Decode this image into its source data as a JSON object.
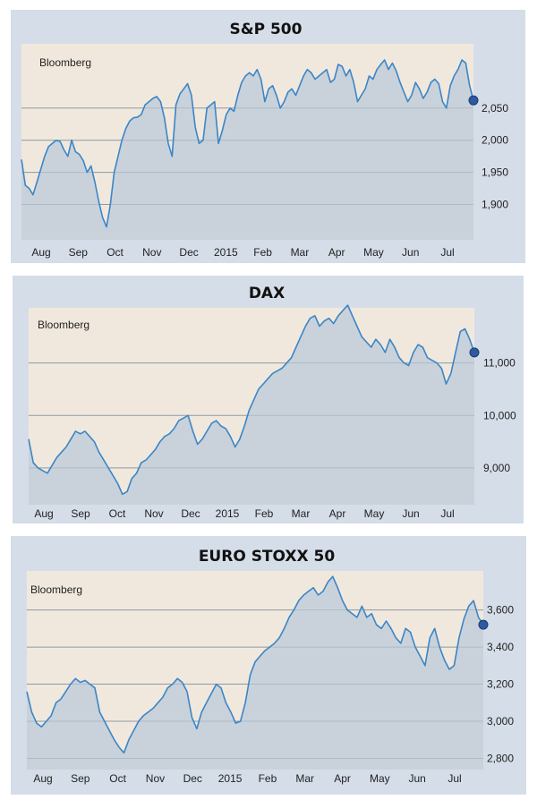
{
  "colors": {
    "frame": "#d5dde8",
    "plot_background": "#f1e8dd",
    "area_fill": "#b8c9d8",
    "line": "#3a86c8",
    "gridline": "#8e99a3",
    "endpoint_fill": "#2d5aa0",
    "endpoint_stroke": "#1b3a6e"
  },
  "chart_data": [
    {
      "type": "area",
      "title": "S&P 500",
      "source": "Bloomberg",
      "x_labels": [
        "Aug",
        "Sep",
        "Oct",
        "Nov",
        "Dec",
        "2015",
        "Feb",
        "Mar",
        "Apr",
        "May",
        "Jun",
        "Jul"
      ],
      "y_ticks": [
        1900,
        1950,
        2000,
        2050
      ],
      "y_tick_labels": [
        "1,900",
        "1,950",
        "2,000",
        "2,050"
      ],
      "ylim": [
        1845,
        2150
      ],
      "grid": true,
      "series": [
        {
          "values": [
            1970,
            1930,
            1925,
            1915,
            1935,
            1955,
            1975,
            1990,
            1995,
            2000,
            1998,
            1985,
            1975,
            2000,
            1982,
            1978,
            1968,
            1950,
            1960,
            1935,
            1905,
            1880,
            1865,
            1900,
            1950,
            1975,
            2000,
            2018,
            2030,
            2035,
            2036,
            2040,
            2055,
            2060,
            2065,
            2068,
            2060,
            2035,
            1995,
            1975,
            2055,
            2072,
            2080,
            2088,
            2070,
            2020,
            1995,
            2000,
            2050,
            2055,
            2060,
            1995,
            2015,
            2040,
            2050,
            2045,
            2070,
            2090,
            2100,
            2105,
            2100,
            2110,
            2095,
            2060,
            2080,
            2085,
            2070,
            2050,
            2060,
            2075,
            2080,
            2070,
            2085,
            2100,
            2110,
            2105,
            2095,
            2100,
            2105,
            2110,
            2090,
            2095,
            2118,
            2115,
            2100,
            2110,
            2090,
            2060,
            2070,
            2080,
            2100,
            2095,
            2110,
            2118,
            2125,
            2110,
            2120,
            2108,
            2090,
            2075,
            2060,
            2070,
            2090,
            2080,
            2065,
            2075,
            2090,
            2095,
            2088,
            2060,
            2050,
            2085,
            2100,
            2110,
            2125,
            2120,
            2085,
            2062
          ]
        }
      ]
    },
    {
      "type": "area",
      "title": "DAX",
      "source": "Bloomberg",
      "x_labels": [
        "Aug",
        "Sep",
        "Oct",
        "Nov",
        "Dec",
        "2015",
        "Feb",
        "Mar",
        "Apr",
        "May",
        "Jun",
        "Jul"
      ],
      "y_ticks": [
        9000,
        10000,
        11000
      ],
      "y_tick_labels": [
        "9,000",
        "10,000",
        "11,000"
      ],
      "ylim": [
        8300,
        12050
      ],
      "grid": true,
      "series": [
        {
          "values": [
            9550,
            9100,
            9000,
            8950,
            8900,
            9050,
            9200,
            9300,
            9400,
            9550,
            9700,
            9650,
            9700,
            9600,
            9500,
            9300,
            9150,
            9000,
            8850,
            8700,
            8500,
            8550,
            8800,
            8900,
            9100,
            9150,
            9250,
            9350,
            9500,
            9600,
            9650,
            9750,
            9900,
            9950,
            10000,
            9700,
            9450,
            9550,
            9700,
            9850,
            9900,
            9800,
            9750,
            9600,
            9400,
            9550,
            9800,
            10100,
            10300,
            10500,
            10600,
            10700,
            10800,
            10850,
            10900,
            11000,
            11100,
            11300,
            11500,
            11700,
            11850,
            11900,
            11700,
            11800,
            11850,
            11750,
            11900,
            12000,
            12100,
            11900,
            11700,
            11500,
            11400,
            11300,
            11450,
            11350,
            11200,
            11450,
            11300,
            11100,
            11000,
            10950,
            11200,
            11350,
            11300,
            11100,
            11050,
            11000,
            10900,
            10600,
            10800,
            11200,
            11600,
            11650,
            11450,
            11200
          ]
        }
      ]
    },
    {
      "type": "area",
      "title": "EURO STOXX 50",
      "source": "Bloomberg",
      "x_labels": [
        "Aug",
        "Sep",
        "Oct",
        "Nov",
        "Dec",
        "2015",
        "Feb",
        "Mar",
        "Apr",
        "May",
        "Jun",
        "Jul"
      ],
      "y_ticks": [
        2800,
        3000,
        3200,
        3400,
        3600
      ],
      "y_tick_labels": [
        "2,800",
        "3,000",
        "3,200",
        "3,400",
        "3,600"
      ],
      "ylim": [
        2740,
        3810
      ],
      "grid": true,
      "series": [
        {
          "values": [
            3160,
            3050,
            2990,
            2970,
            3000,
            3030,
            3100,
            3120,
            3160,
            3200,
            3230,
            3210,
            3220,
            3200,
            3180,
            3050,
            3000,
            2950,
            2900,
            2860,
            2830,
            2900,
            2950,
            3000,
            3030,
            3050,
            3070,
            3100,
            3130,
            3180,
            3200,
            3230,
            3210,
            3160,
            3020,
            2960,
            3050,
            3100,
            3150,
            3200,
            3180,
            3100,
            3050,
            2990,
            3000,
            3100,
            3250,
            3320,
            3350,
            3380,
            3400,
            3420,
            3450,
            3500,
            3560,
            3600,
            3650,
            3680,
            3700,
            3720,
            3680,
            3700,
            3750,
            3780,
            3720,
            3650,
            3600,
            3580,
            3560,
            3620,
            3560,
            3580,
            3520,
            3500,
            3540,
            3500,
            3450,
            3420,
            3500,
            3480,
            3400,
            3350,
            3300,
            3450,
            3500,
            3400,
            3330,
            3280,
            3300,
            3450,
            3550,
            3620,
            3650,
            3560,
            3520
          ]
        }
      ]
    }
  ]
}
